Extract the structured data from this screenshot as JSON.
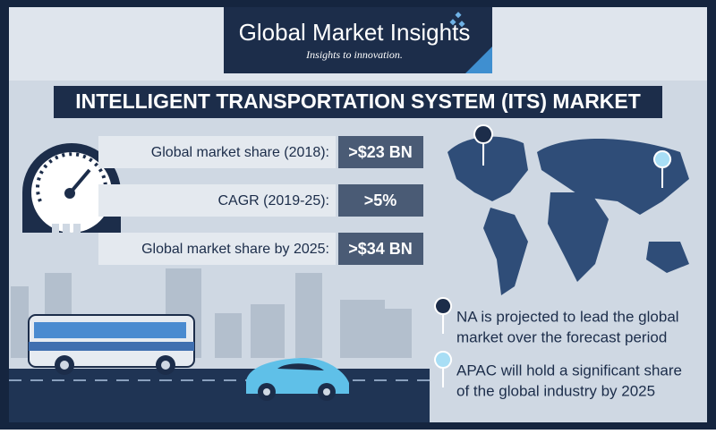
{
  "header": {
    "brand": "Global Market Insights",
    "tagline": "Insights to innovation."
  },
  "title": "INTELLIGENT TRANSPORTATION SYSTEM (ITS) MARKET",
  "stats": [
    {
      "label": "Global market share (2018):",
      "value": ">$23 BN"
    },
    {
      "label": "CAGR (2019-25):",
      "value": ">5%"
    },
    {
      "label": "Global market share by 2025:",
      "value": ">$34 BN"
    }
  ],
  "notes": [
    {
      "line1": "NA is projected to lead the global",
      "line2": "market over the forecast period"
    },
    {
      "line1": "APAC will hold a significant share",
      "line2": "of the global industry by 2025"
    }
  ]
}
